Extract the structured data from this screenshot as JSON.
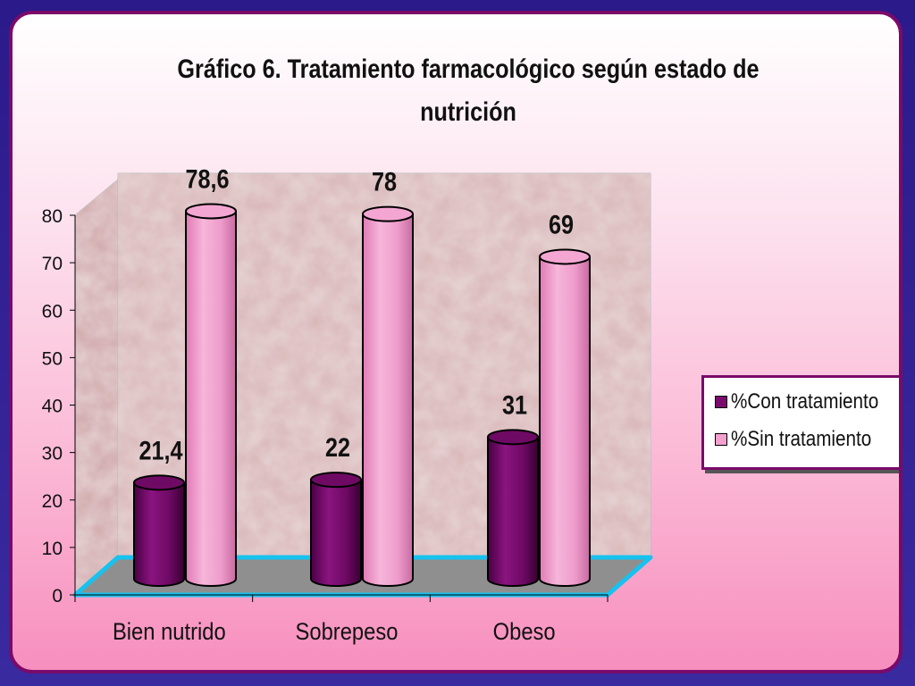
{
  "chart_data": {
    "type": "bar",
    "title": "Gráfico 6. Tratamiento farmacológico según estado de nutrición",
    "categories": [
      "Bien nutrido",
      "Sobrepeso",
      "Obeso"
    ],
    "series": [
      {
        "name": "%Con tratamiento",
        "values": [
          21.4,
          22,
          31
        ],
        "labels": [
          "21,4",
          "22",
          "31"
        ],
        "color": "#7a0a6e"
      },
      {
        "name": "%Sin tratamiento",
        "values": [
          78.6,
          78,
          69
        ],
        "labels": [
          "78,6",
          "78",
          "69"
        ],
        "color": "#f3a0cf"
      }
    ],
    "yticks": [
      0,
      10,
      20,
      30,
      40,
      50,
      60,
      70,
      80
    ],
    "ylim": [
      0,
      80
    ],
    "legend": "right",
    "grid": false
  }
}
